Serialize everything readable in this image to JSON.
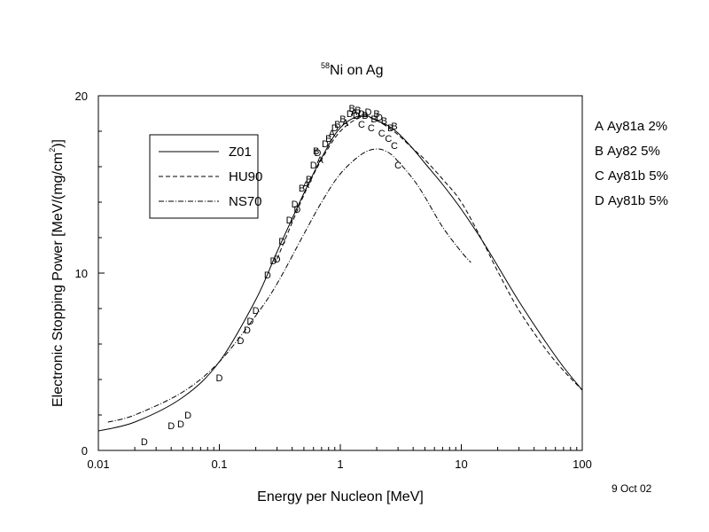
{
  "chart_data": {
    "type": "line",
    "title": {
      "mass_number": "58",
      "text": "Ni on Ag"
    },
    "xlabel": "Energy per Nucleon [MeV]",
    "ylabel": {
      "main": "Electronic Stopping Power [MeV/(mg/cm",
      "sup": "2",
      "close": ")]"
    },
    "x_scale": "log",
    "xlim": [
      0.01,
      100
    ],
    "ylim": [
      0,
      20
    ],
    "x_ticks": [
      {
        "value": 0.01,
        "label": "0.01"
      },
      {
        "value": 0.1,
        "label": "0.1"
      },
      {
        "value": 1,
        "label": "1"
      },
      {
        "value": 10,
        "label": "10"
      },
      {
        "value": 100,
        "label": "100"
      }
    ],
    "y_ticks": [
      {
        "value": 0,
        "label": "0"
      },
      {
        "value": 10,
        "label": "10"
      },
      {
        "value": 20,
        "label": "20"
      }
    ],
    "grid": false,
    "legend_position": "upper-left",
    "series": [
      {
        "name": "Z01",
        "style": "solid",
        "x": [
          0.01,
          0.02,
          0.05,
          0.1,
          0.2,
          0.3,
          0.5,
          0.7,
          1.0,
          1.5,
          2.0,
          2.5,
          3.0,
          4.0,
          5.0,
          7.0,
          10,
          15,
          20,
          30,
          50,
          70,
          100
        ],
        "y": [
          1.1,
          1.6,
          3.0,
          5.0,
          8.5,
          11.2,
          14.5,
          16.5,
          18.2,
          18.9,
          18.6,
          18.3,
          17.9,
          17.0,
          16.2,
          15.0,
          13.6,
          11.8,
          10.4,
          8.4,
          6.1,
          4.7,
          3.4
        ]
      },
      {
        "name": "HU90",
        "style": "dashed",
        "x": [
          0.3,
          0.5,
          0.7,
          1.0,
          1.5,
          2.0,
          2.5,
          3.0,
          4.0,
          5.0,
          7.0,
          10,
          15,
          20,
          30,
          50,
          70,
          100
        ],
        "y": [
          10.8,
          14.4,
          16.4,
          18.0,
          18.8,
          18.6,
          18.2,
          17.8,
          17.0,
          16.4,
          15.3,
          14.0,
          11.8,
          10.1,
          7.9,
          5.7,
          4.5,
          3.4
        ]
      },
      {
        "name": "NS70",
        "style": "dash-dot",
        "x": [
          0.012,
          0.02,
          0.05,
          0.1,
          0.2,
          0.3,
          0.5,
          0.7,
          1.0,
          1.5,
          2.0,
          2.5,
          3.0,
          4.0,
          5.0,
          7.0,
          10,
          12
        ],
        "y": [
          1.6,
          2.0,
          3.3,
          5.0,
          7.6,
          9.4,
          12.2,
          14.0,
          15.6,
          16.7,
          17.0,
          16.8,
          16.3,
          15.3,
          14.3,
          12.6,
          11.2,
          10.6
        ]
      }
    ],
    "points": [
      {
        "label": "D",
        "x": 0.024,
        "y": 0.5
      },
      {
        "label": "D",
        "x": 0.04,
        "y": 1.4
      },
      {
        "label": "D",
        "x": 0.048,
        "y": 1.5
      },
      {
        "label": "D",
        "x": 0.055,
        "y": 2.0
      },
      {
        "label": "D",
        "x": 0.1,
        "y": 4.1
      },
      {
        "label": "D",
        "x": 0.15,
        "y": 6.2
      },
      {
        "label": "D",
        "x": 0.17,
        "y": 6.8
      },
      {
        "label": "D",
        "x": 0.18,
        "y": 7.3
      },
      {
        "label": "D",
        "x": 0.2,
        "y": 7.9
      },
      {
        "label": "D",
        "x": 0.25,
        "y": 9.9
      },
      {
        "label": "D",
        "x": 0.28,
        "y": 10.7
      },
      {
        "label": "D",
        "x": 0.3,
        "y": 10.8
      },
      {
        "label": "D",
        "x": 0.33,
        "y": 11.8
      },
      {
        "label": "D",
        "x": 0.38,
        "y": 13.0
      },
      {
        "label": "D",
        "x": 0.42,
        "y": 13.9
      },
      {
        "label": "D",
        "x": 0.44,
        "y": 13.6
      },
      {
        "label": "B",
        "x": 0.48,
        "y": 14.8
      },
      {
        "label": "A",
        "x": 0.52,
        "y": 15.0
      },
      {
        "label": "B",
        "x": 0.55,
        "y": 15.3
      },
      {
        "label": "D",
        "x": 0.6,
        "y": 16.1
      },
      {
        "label": "B",
        "x": 0.63,
        "y": 16.9
      },
      {
        "label": "D",
        "x": 0.65,
        "y": 16.8
      },
      {
        "label": "A",
        "x": 0.68,
        "y": 16.4
      },
      {
        "label": "D",
        "x": 0.75,
        "y": 17.3
      },
      {
        "label": "B",
        "x": 0.8,
        "y": 17.6
      },
      {
        "label": "A",
        "x": 0.85,
        "y": 17.9
      },
      {
        "label": "D",
        "x": 0.9,
        "y": 18.2
      },
      {
        "label": "B",
        "x": 0.95,
        "y": 18.4
      },
      {
        "label": "B",
        "x": 1.05,
        "y": 18.7
      },
      {
        "label": "A",
        "x": 1.1,
        "y": 18.5
      },
      {
        "label": "D",
        "x": 1.2,
        "y": 19.0
      },
      {
        "label": "B",
        "x": 1.25,
        "y": 19.3
      },
      {
        "label": "A",
        "x": 1.3,
        "y": 19.1
      },
      {
        "label": "D",
        "x": 1.35,
        "y": 18.9
      },
      {
        "label": "B",
        "x": 1.4,
        "y": 19.2
      },
      {
        "label": "D",
        "x": 1.5,
        "y": 19.0
      },
      {
        "label": "C",
        "x": 1.5,
        "y": 18.4
      },
      {
        "label": "B",
        "x": 1.6,
        "y": 18.9
      },
      {
        "label": "D",
        "x": 1.7,
        "y": 19.1
      },
      {
        "label": "C",
        "x": 1.8,
        "y": 18.2
      },
      {
        "label": "B",
        "x": 1.9,
        "y": 18.7
      },
      {
        "label": "B",
        "x": 2.0,
        "y": 19.0
      },
      {
        "label": "D",
        "x": 2.1,
        "y": 18.8
      },
      {
        "label": "C",
        "x": 2.2,
        "y": 17.9
      },
      {
        "label": "B",
        "x": 2.3,
        "y": 18.6
      },
      {
        "label": "C",
        "x": 2.5,
        "y": 17.6
      },
      {
        "label": "B",
        "x": 2.6,
        "y": 18.2
      },
      {
        "label": "C",
        "x": 2.8,
        "y": 17.2
      },
      {
        "label": "B",
        "x": 2.8,
        "y": 18.3
      },
      {
        "label": "C",
        "x": 3.0,
        "y": 16.1
      }
    ],
    "references": [
      {
        "label": "A",
        "text": "Ay81a 2%"
      },
      {
        "label": "B",
        "text": "Ay82  5%"
      },
      {
        "label": "C",
        "text": "Ay81b 5%"
      },
      {
        "label": "D",
        "text": "Ay81b 5%"
      }
    ],
    "date": "9 Oct 02"
  }
}
